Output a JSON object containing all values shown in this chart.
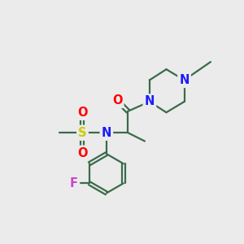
{
  "bg_color": "#ebebeb",
  "bond_color": "#3a6b4a",
  "bond_width": 1.6,
  "atom_colors": {
    "N": "#1a1aff",
    "O": "#ff0000",
    "S": "#cccc00",
    "F": "#cc44cc",
    "C": "#3a6b4a"
  },
  "font_size_atom": 10.5
}
